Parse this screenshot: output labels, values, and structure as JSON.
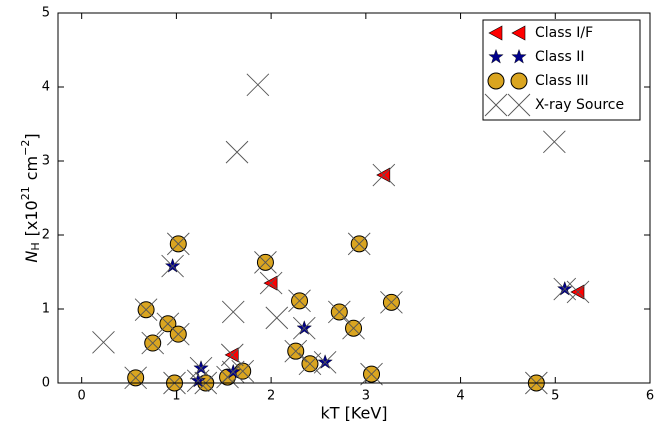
{
  "chart_data": {
    "type": "scatter",
    "xlabel": "kT [KeV]",
    "ylabel_parts": [
      "N",
      "H",
      "[x10",
      "21",
      "cm",
      "−2",
      "]"
    ],
    "xlim": [
      -0.25,
      6
    ],
    "ylim": [
      0,
      5
    ],
    "xticks": [
      0,
      1,
      2,
      3,
      4,
      5,
      6
    ],
    "yticks": [
      0,
      1,
      2,
      3,
      4,
      5
    ],
    "legend": "upper right",
    "series": [
      {
        "name": "Class III",
        "marker": "circle",
        "color": "#daa520",
        "x": [
          1.02,
          1.94,
          2.93,
          0.68,
          0.91,
          0.75,
          1.02,
          2.3,
          3.27,
          2.72,
          2.87,
          2.26,
          2.41,
          0.57,
          0.98,
          1.31,
          1.54,
          1.7,
          3.06,
          4.8
        ],
        "values": [
          1.88,
          1.63,
          1.88,
          0.99,
          0.8,
          0.54,
          0.66,
          1.11,
          1.09,
          0.96,
          0.74,
          0.43,
          0.26,
          0.07,
          0.0,
          0.0,
          0.08,
          0.16,
          0.12,
          0.0
        ]
      },
      {
        "name": "Class II",
        "marker": "star",
        "color": "#00008b",
        "x": [
          0.96,
          2.35,
          1.26,
          1.6,
          2.57,
          5.1,
          1.23
        ],
        "values": [
          1.58,
          0.74,
          0.2,
          0.15,
          0.28,
          1.27,
          0.03
        ]
      },
      {
        "name": "Class I/F",
        "marker": "triangle",
        "color": "#ff0000",
        "x": [
          3.19,
          2.0,
          1.59,
          5.24
        ],
        "values": [
          2.81,
          1.35,
          0.38,
          1.23
        ]
      },
      {
        "name": "X-ray Source",
        "marker": "cross",
        "color": "#555555",
        "x": [
          0.23,
          1.86,
          1.64,
          4.99,
          1.6,
          2.06,
          1.02,
          1.94,
          2.93,
          0.68,
          0.91,
          0.75,
          1.02,
          2.3,
          3.27,
          2.72,
          2.87,
          2.26,
          2.41,
          0.57,
          0.98,
          1.31,
          1.54,
          1.7,
          3.06,
          4.8,
          0.96,
          2.35,
          1.26,
          1.6,
          2.57,
          5.1,
          1.23,
          3.19,
          2.0,
          1.59,
          5.24
        ],
        "values": [
          0.55,
          4.03,
          3.12,
          3.26,
          0.96,
          0.88,
          1.88,
          1.63,
          1.88,
          0.99,
          0.8,
          0.54,
          0.66,
          1.11,
          1.09,
          0.96,
          0.74,
          0.43,
          0.26,
          0.07,
          0.0,
          0.0,
          0.08,
          0.16,
          0.12,
          0.0,
          1.58,
          0.74,
          0.2,
          0.15,
          0.28,
          1.27,
          0.03,
          2.81,
          1.35,
          0.38,
          1.23
        ]
      }
    ],
    "legend_order": [
      2,
      1,
      0,
      3
    ]
  }
}
